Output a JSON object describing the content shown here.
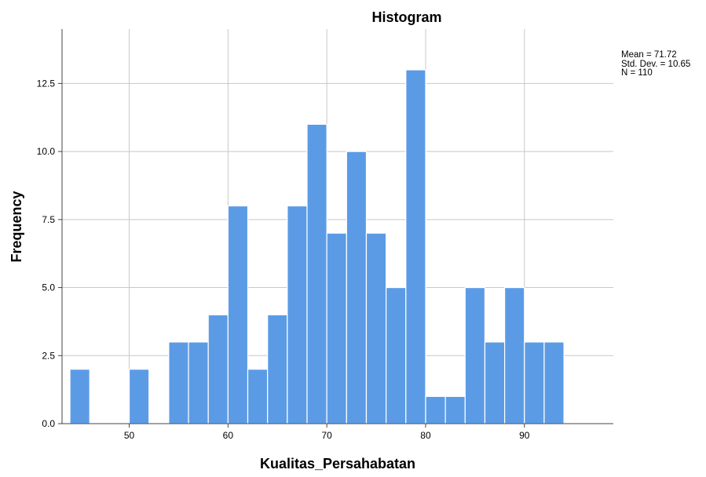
{
  "chart_data": {
    "type": "bar",
    "title": "Histogram",
    "xlabel": "Kualitas_Persahabatan",
    "ylabel": "Frequency",
    "bin_width": 2,
    "bin_starts": [
      44,
      46,
      48,
      50,
      52,
      54,
      56,
      58,
      60,
      62,
      64,
      66,
      68,
      70,
      72,
      74,
      76,
      78,
      80,
      82,
      84,
      86,
      88,
      90,
      92
    ],
    "values": [
      2,
      0,
      0,
      2,
      0,
      3,
      3,
      4,
      8,
      2,
      4,
      8,
      11,
      7,
      10,
      7,
      5,
      13,
      1,
      1,
      5,
      3,
      5,
      3,
      3
    ],
    "xlim": [
      43.2,
      99.0
    ],
    "ylim": [
      0,
      14.5
    ],
    "xticks": [
      50,
      60,
      70,
      80,
      90
    ],
    "xtick_labels": [
      "50",
      "60",
      "70",
      "80",
      "90"
    ],
    "yticks": [
      0,
      2.5,
      5,
      7.5,
      10,
      12.5
    ],
    "ytick_labels": [
      "0.0",
      "2.5",
      "5.0",
      "7.5",
      "10.0",
      "12.5"
    ],
    "grid": true,
    "bar_color": "#5B9BE6",
    "bar_edge_color": "#ffffff",
    "stats": {
      "mean": "Mean = 71.72",
      "std": "Std. Dev. = 10.65",
      "n": "N = 110"
    }
  }
}
